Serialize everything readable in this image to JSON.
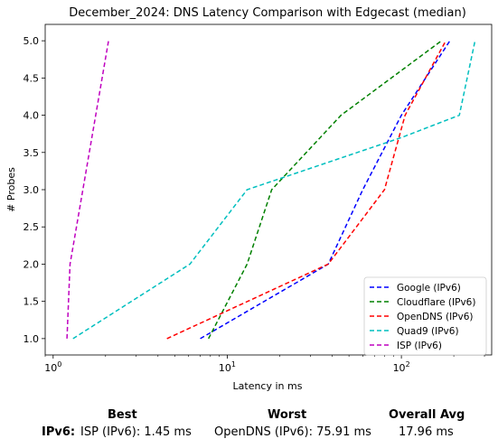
{
  "chart_data": {
    "type": "line",
    "title": "December_2024: DNS Latency Comparison with Edgecast (median)",
    "xlabel": "Latency in ms",
    "ylabel": "# Probes",
    "xscale": "log",
    "xlim": [
      0.9,
      330
    ],
    "ylim": [
      0.78,
      5.22
    ],
    "xticks": [
      {
        "value": 1,
        "label": "10^0"
      },
      {
        "value": 10,
        "label": "10^1"
      },
      {
        "value": 100,
        "label": "10^2"
      }
    ],
    "yticks": [
      "1.0",
      "1.5",
      "2.0",
      "2.5",
      "3.0",
      "3.5",
      "4.0",
      "4.5",
      "5.0"
    ],
    "grid": false,
    "legend_position": "bottom-right",
    "series": [
      {
        "name": "Google (IPv6)",
        "color": "#0000ff",
        "points": [
          [
            7,
            1
          ],
          [
            38,
            2
          ],
          [
            60,
            3
          ],
          [
            100,
            4
          ],
          [
            190,
            5
          ]
        ]
      },
      {
        "name": "Cloudflare (IPv6)",
        "color": "#008000",
        "points": [
          [
            7.8,
            1
          ],
          [
            13,
            2
          ],
          [
            18,
            3
          ],
          [
            45,
            4
          ],
          [
            170,
            5
          ]
        ]
      },
      {
        "name": "OpenDNS (IPv6)",
        "color": "#ff0000",
        "points": [
          [
            4.5,
            1
          ],
          [
            38,
            2
          ],
          [
            80,
            3
          ],
          [
            105,
            4
          ],
          [
            180,
            5
          ]
        ]
      },
      {
        "name": "Quad9 (IPv6)",
        "color": "#00bfbf",
        "points": [
          [
            1.3,
            1
          ],
          [
            6.1,
            2
          ],
          [
            13,
            3
          ],
          [
            100,
            3.7
          ],
          [
            215,
            4
          ],
          [
            265,
            5
          ]
        ]
      },
      {
        "name": "ISP (IPv6)",
        "color": "#bf00bf",
        "points": [
          [
            1.2,
            1
          ],
          [
            1.25,
            2
          ],
          [
            2.08,
            5
          ]
        ]
      }
    ]
  },
  "summary": {
    "best_header": "Best",
    "worst_header": "Worst",
    "avg_header": "Overall Avg",
    "row_label": "IPv6:",
    "best_value": "ISP (IPv6): 1.45 ms",
    "worst_value": "OpenDNS (IPv6): 75.91 ms",
    "avg_value": "17.96 ms"
  }
}
